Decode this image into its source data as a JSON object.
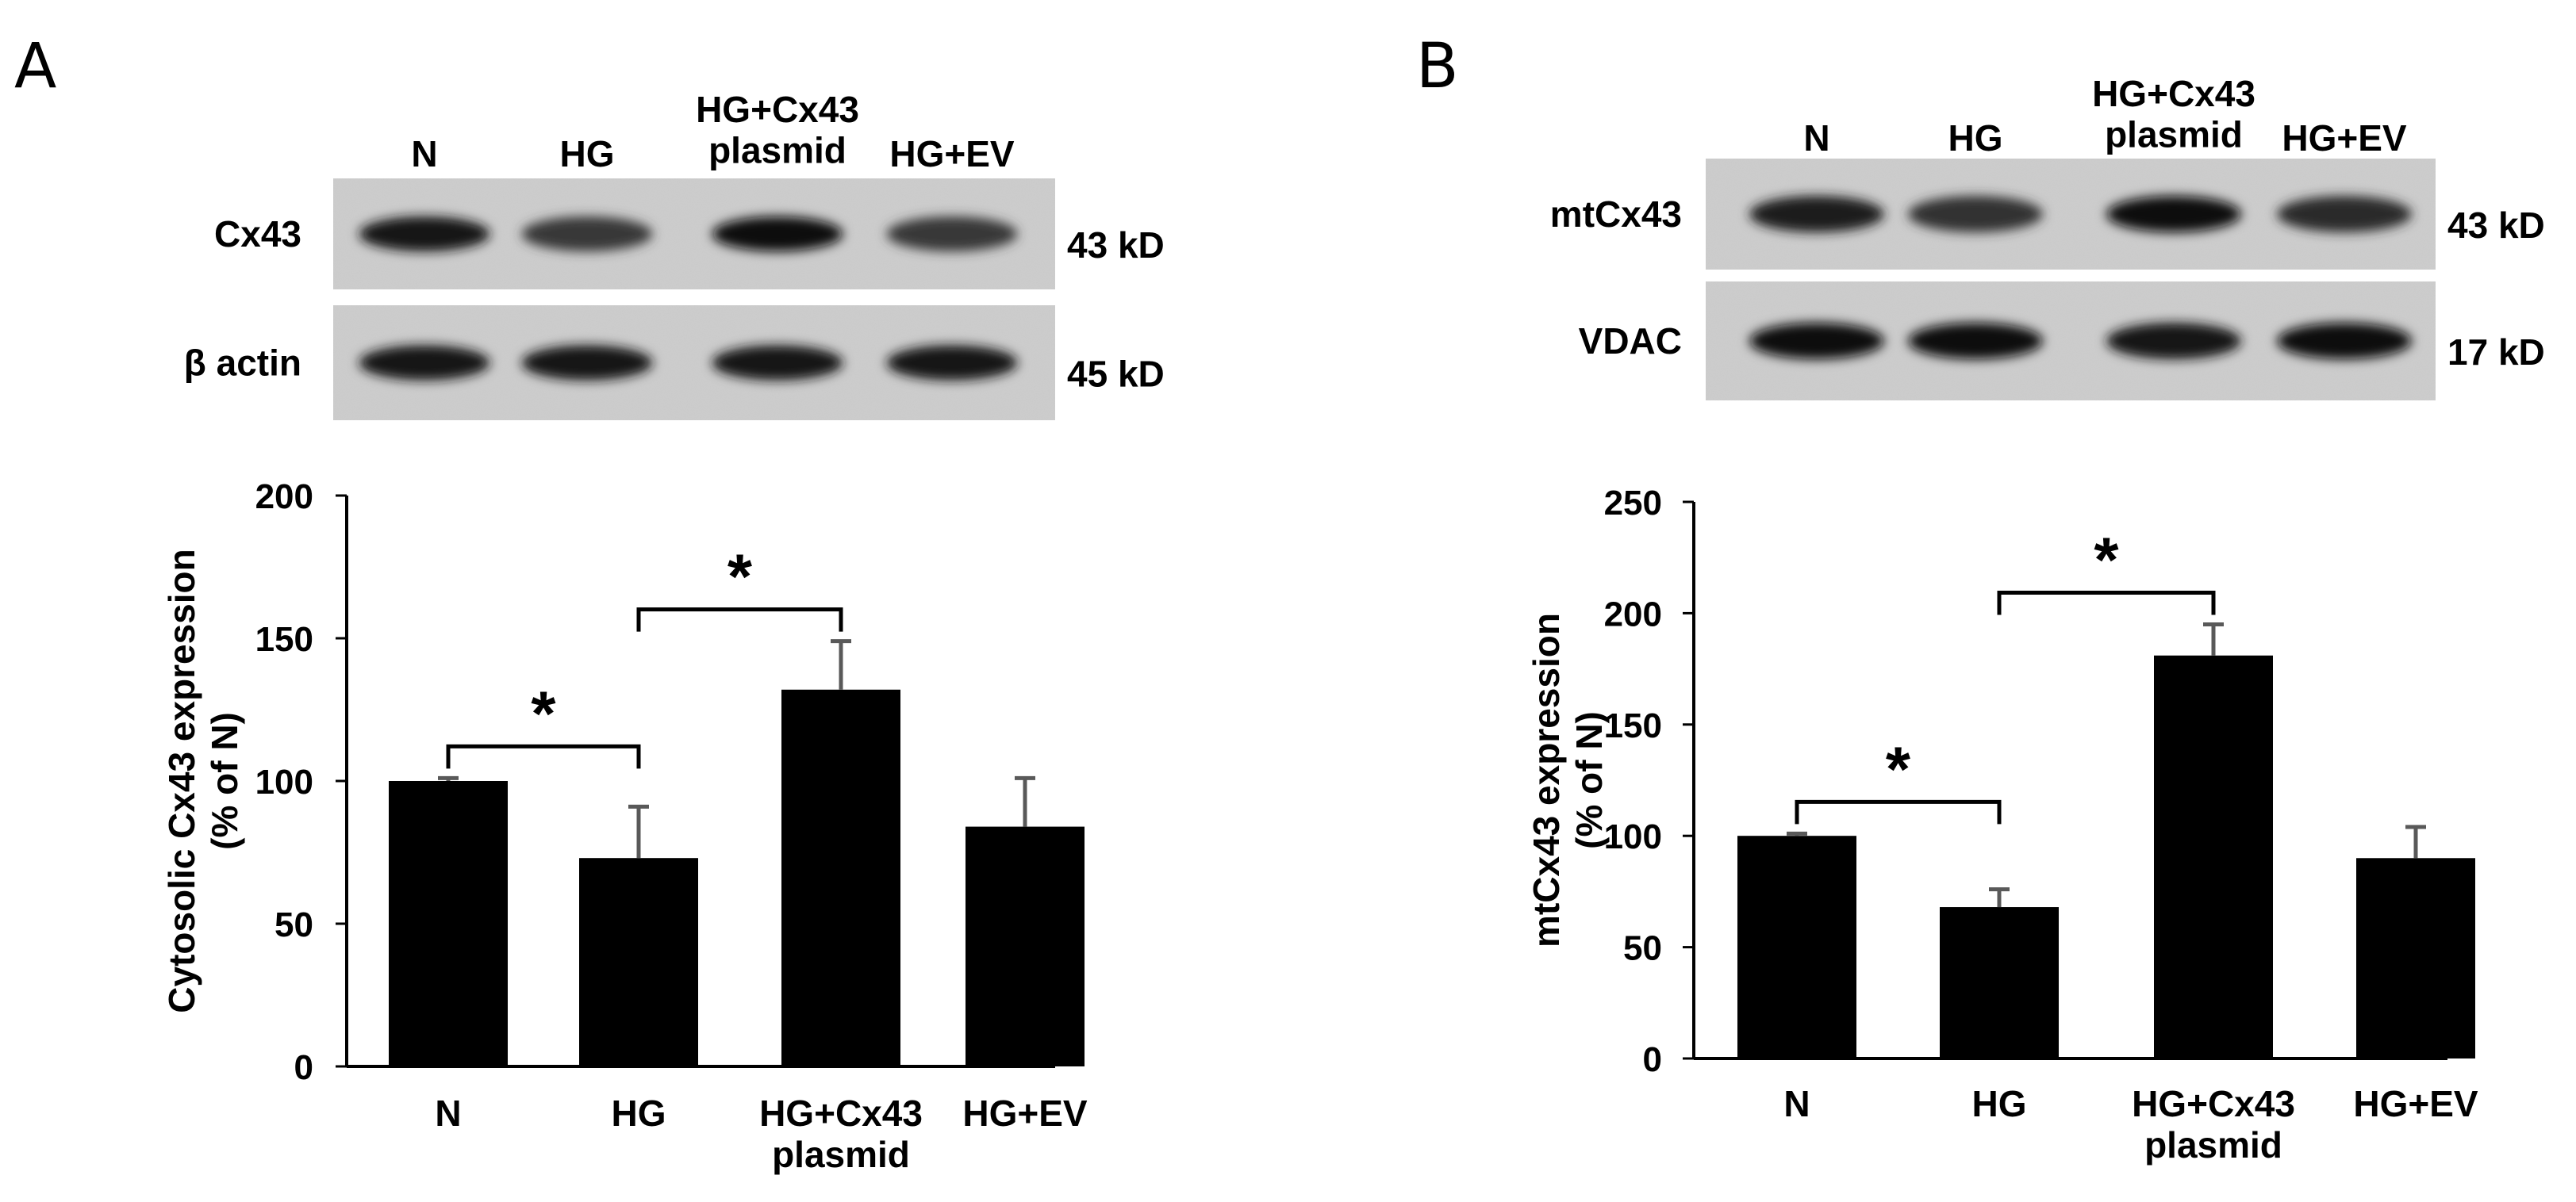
{
  "panels": [
    {
      "letter": "A",
      "blot": {
        "lane_labels": [
          "N",
          "HG",
          "HG+Cx43\nplasmid",
          "HG+EV"
        ],
        "rows": [
          {
            "label": "Cx43",
            "size": "43 kD",
            "band_intensity": [
              0.85,
              0.6,
              0.95,
              0.6
            ]
          },
          {
            "label": "β actin",
            "size": "45 kD",
            "band_intensity": [
              0.85,
              0.85,
              0.85,
              0.85
            ]
          }
        ]
      }
    },
    {
      "letter": "B",
      "blot": {
        "lane_labels": [
          "N",
          "HG",
          "HG+Cx43\nplasmid",
          "HG+EV"
        ],
        "rows": [
          {
            "label": "mtCx43",
            "size": "43 kD",
            "band_intensity": [
              0.8,
              0.65,
              0.95,
              0.7
            ]
          },
          {
            "label": "VDAC",
            "size": "17 kD",
            "band_intensity": [
              0.95,
              0.9,
              0.85,
              0.95
            ]
          }
        ]
      }
    }
  ],
  "chart_data": [
    {
      "type": "bar",
      "categories": [
        "N",
        "HG",
        "HG+Cx43\nplasmid",
        "HG+EV"
      ],
      "values": [
        100,
        73,
        132,
        84
      ],
      "errors": [
        1,
        18,
        17,
        17
      ],
      "ylabel": "Cytosolic Cx43 expression\n(% of N)",
      "xlabel": "",
      "ylim": [
        0,
        200
      ],
      "yticks": [
        0,
        50,
        100,
        150,
        200
      ],
      "grid": false,
      "bar_color": "#000000",
      "error_color": "#595959",
      "significance": [
        {
          "from": 0,
          "to": 1,
          "label": "*"
        },
        {
          "from": 1,
          "to": 2,
          "label": "*"
        }
      ]
    },
    {
      "type": "bar",
      "categories": [
        "N",
        "HG",
        "HG+Cx43\nplasmid",
        "HG+EV"
      ],
      "values": [
        100,
        68,
        181,
        90
      ],
      "errors": [
        1,
        8,
        14,
        14
      ],
      "ylabel": "mtCx43 expression\n(% of N)",
      "xlabel": "",
      "ylim": [
        0,
        250
      ],
      "yticks": [
        0,
        50,
        100,
        150,
        200,
        250
      ],
      "grid": false,
      "bar_color": "#000000",
      "error_color": "#595959",
      "significance": [
        {
          "from": 0,
          "to": 1,
          "label": "*"
        },
        {
          "from": 1,
          "to": 2,
          "label": "*"
        }
      ]
    }
  ]
}
